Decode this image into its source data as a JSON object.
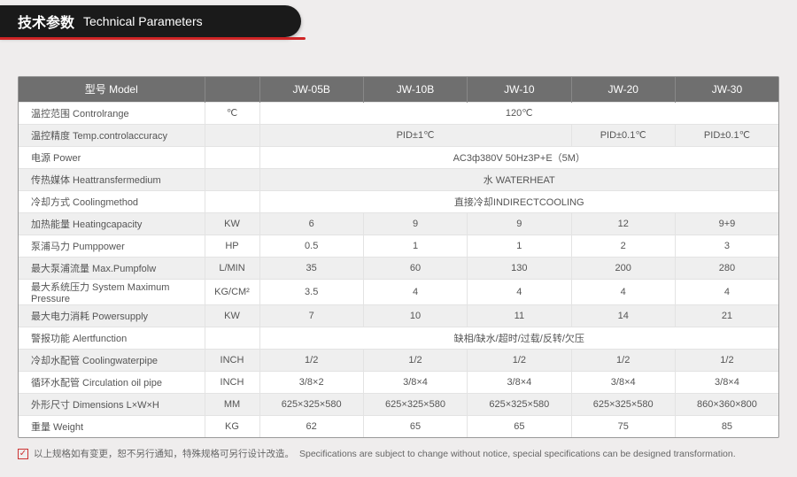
{
  "header": {
    "cn": "技术参数",
    "en": "Technical Parameters"
  },
  "columns": {
    "param": "型号 Model",
    "unit": "",
    "m1": "JW-05B",
    "m2": "JW-10B",
    "m3": "JW-10",
    "m4": "JW-20",
    "m5": "JW-30"
  },
  "rows": [
    {
      "param": "温控范围 Controlrange",
      "unit": "℃",
      "span5": "120℃"
    },
    {
      "param": "温控精度 Temp.controlaccuracy",
      "unit": "",
      "span3": "PID±1℃",
      "c4": "PID±0.1℃",
      "c5": "PID±0.1℃"
    },
    {
      "param": "电源 Power",
      "unit": "",
      "span5": "AC3ф380V 50Hz3P+E（5M）"
    },
    {
      "param": "传热媒体 Heattransfermedium",
      "unit": "",
      "span5": "水 WATERHEAT"
    },
    {
      "param": "冷却方式 Coolingmethod",
      "unit": "",
      "span5": "直接冷却INDIRECTCOOLING"
    },
    {
      "param": "加热能量 Heatingcapacity",
      "unit": "KW",
      "c1": "6",
      "c2": "9",
      "c3": "9",
      "c4": "12",
      "c5": "9+9"
    },
    {
      "param": "泵浦马力 Pumppower",
      "unit": "HP",
      "c1": "0.5",
      "c2": "1",
      "c3": "1",
      "c4": "2",
      "c5": "3"
    },
    {
      "param": "最大泵浦流量 Max.Pumpfolw",
      "unit": "L/MIN",
      "c1": "35",
      "c2": "60",
      "c3": "130",
      "c4": "200",
      "c5": "280"
    },
    {
      "param": "最大系统压力 System Maximum Pressure",
      "unit": "KG/CM²",
      "c1": "3.5",
      "c2": "4",
      "c3": "4",
      "c4": "4",
      "c5": "4"
    },
    {
      "param": "最大电力消耗 Powersupply",
      "unit": "KW",
      "c1": "7",
      "c2": "10",
      "c3": "11",
      "c4": "14",
      "c5": "21"
    },
    {
      "param": "警报功能 Alertfunction",
      "unit": "",
      "span5": "缺相/缺水/超时/过载/反转/欠压"
    },
    {
      "param": "冷却水配管 Coolingwaterpipe",
      "unit": "INCH",
      "c1": "1/2",
      "c2": "1/2",
      "c3": "1/2",
      "c4": "1/2",
      "c5": "1/2"
    },
    {
      "param": "循环水配管 Circulation oil pipe",
      "unit": "INCH",
      "c1": "3/8×2",
      "c2": "3/8×4",
      "c3": "3/8×4",
      "c4": "3/8×4",
      "c5": "3/8×4"
    },
    {
      "param": "外形尺寸 Dimensions L×W×H",
      "unit": "MM",
      "c1": "625×325×580",
      "c2": "625×325×580",
      "c3": "625×325×580",
      "c4": "625×325×580",
      "c5": "860×360×800"
    },
    {
      "param": "重量 Weight",
      "unit": "KG",
      "c1": "62",
      "c2": "65",
      "c3": "65",
      "c4": "75",
      "c5": "85"
    }
  ],
  "footnote": {
    "check": "✓",
    "cn": "以上规格如有变更，恕不另行通知，特殊规格可另行设计改造。",
    "en": "Specifications are subject to change without notice, special specifications can be designed transformation."
  },
  "style": {
    "header_bg": "#1a1a1a",
    "accent": "#d02526",
    "thead_bg": "#6f6f6f",
    "row_alt": "#efefef",
    "border": "#e3e3e3",
    "page_bg": "#efeded"
  }
}
